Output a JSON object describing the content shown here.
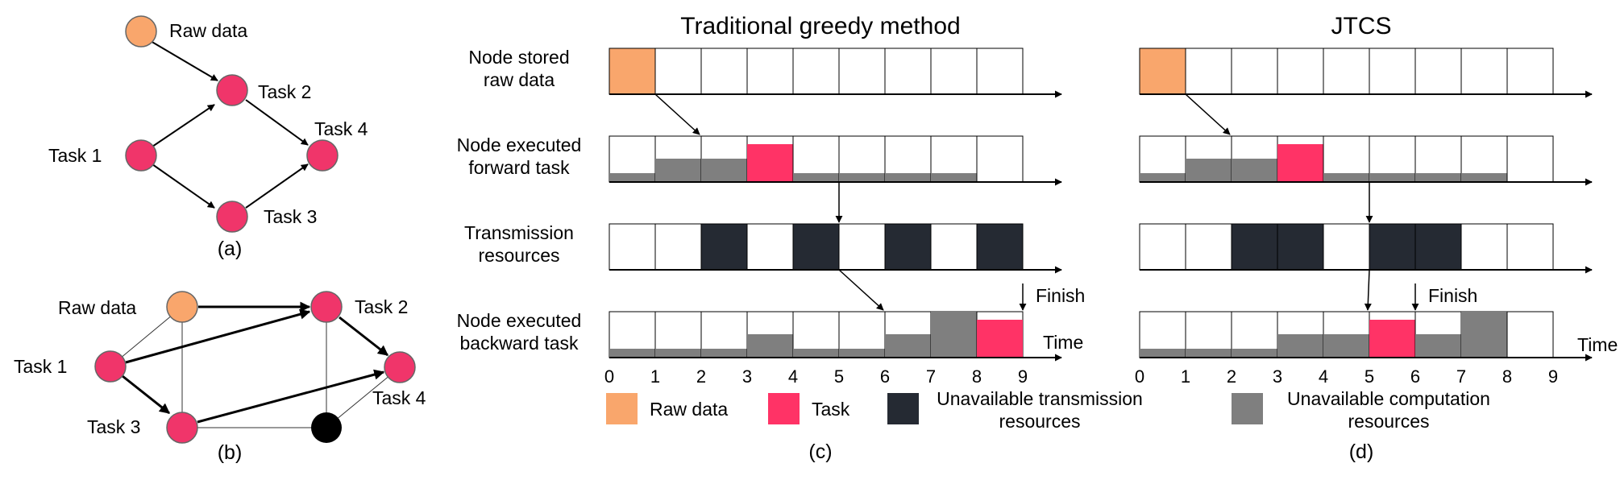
{
  "colors": {
    "raw_data": "#F9A66C",
    "task": "#FF3366",
    "node_task": "#F0356A",
    "unavailable_transmission": "#252A33",
    "unavailable_computation": "#7F7F7F",
    "hidden_node": "#000000"
  },
  "panel_a": {
    "caption": "(a)",
    "raw_data": "Raw data",
    "task1": "Task 1",
    "task2": "Task 2",
    "task3": "Task 3",
    "task4": "Task 4"
  },
  "panel_b": {
    "caption": "(b)",
    "raw_data": "Raw data",
    "task1": "Task 1",
    "task2": "Task 2",
    "task3": "Task 3",
    "task4": "Task 4"
  },
  "row_labels": {
    "raw": [
      "Node stored",
      "raw data"
    ],
    "forward": [
      "Node executed",
      "forward task"
    ],
    "trans": [
      "Transmission",
      "resources"
    ],
    "backward": [
      "Node executed",
      "backward task"
    ]
  },
  "panel_c": {
    "title": "Traditional greedy method",
    "caption": "(c)",
    "finish": "Finish",
    "time": "Time",
    "ticks": [
      "0",
      "1",
      "2",
      "3",
      "4",
      "5",
      "6",
      "7",
      "8",
      "9"
    ],
    "raw_row": {
      "raw_slots": [
        0
      ]
    },
    "forward_row": {
      "computation_levels": [
        0.2,
        0.5,
        0.5,
        0.2,
        0.2,
        0.2,
        0.2,
        0.2,
        0
      ],
      "task_slots": [
        3
      ]
    },
    "trans_row": {
      "unavailable_slots": [
        2,
        4,
        6,
        8
      ]
    },
    "backward_row": {
      "computation_levels": [
        0.2,
        0.2,
        0.2,
        0.5,
        0.2,
        0.2,
        0.5,
        1,
        0
      ],
      "task_slots": [
        8
      ]
    },
    "finish_at": 9
  },
  "panel_d": {
    "title": "JTCS",
    "caption": "(d)",
    "finish": "Finish",
    "time": "Time",
    "ticks": [
      "0",
      "1",
      "2",
      "3",
      "4",
      "5",
      "6",
      "7",
      "8",
      "9"
    ],
    "raw_row": {
      "raw_slots": [
        0
      ]
    },
    "forward_row": {
      "computation_levels": [
        0.2,
        0.5,
        0.5,
        0.2,
        0.2,
        0.2,
        0.2,
        0.2,
        0
      ],
      "task_slots": [
        3
      ]
    },
    "trans_row": {
      "unavailable_slots": [
        2,
        3,
        5,
        6
      ]
    },
    "backward_row": {
      "computation_levels": [
        0.2,
        0.2,
        0.2,
        0.5,
        0.5,
        0.2,
        0.5,
        1,
        0
      ],
      "task_slots": [
        5
      ]
    },
    "finish_at": 6
  },
  "legend": {
    "raw_data": "Raw data",
    "task": "Task",
    "unavailable_transmission": [
      "Unavailable transmission",
      "resources"
    ],
    "unavailable_computation": [
      "Unavailable computation",
      "resources"
    ]
  }
}
